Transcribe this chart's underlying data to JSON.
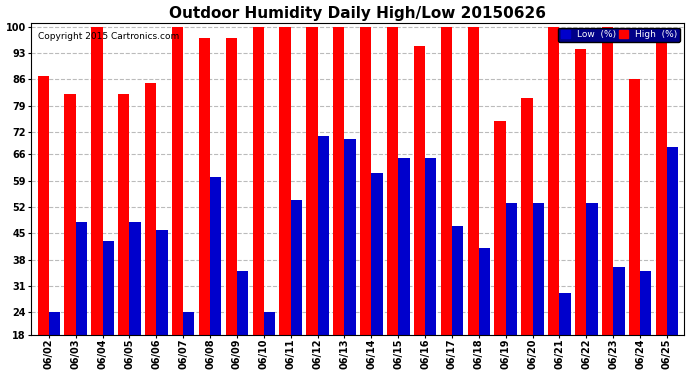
{
  "title": "Outdoor Humidity Daily High/Low 20150626",
  "copyright": "Copyright 2015 Cartronics.com",
  "legend_low": "Low  (%)",
  "legend_high": "High  (%)",
  "dates": [
    "06/02",
    "06/03",
    "06/04",
    "06/05",
    "06/06",
    "06/07",
    "06/08",
    "06/09",
    "06/10",
    "06/11",
    "06/12",
    "06/13",
    "06/14",
    "06/15",
    "06/16",
    "06/17",
    "06/18",
    "06/19",
    "06/20",
    "06/21",
    "06/22",
    "06/23",
    "06/24",
    "06/25"
  ],
  "high": [
    87,
    82,
    100,
    82,
    85,
    100,
    97,
    97,
    100,
    100,
    100,
    100,
    100,
    100,
    95,
    100,
    100,
    75,
    81,
    100,
    94,
    100,
    86,
    99
  ],
  "low": [
    24,
    48,
    43,
    48,
    46,
    24,
    60,
    35,
    24,
    54,
    71,
    70,
    61,
    65,
    65,
    47,
    41,
    53,
    53,
    29,
    53,
    36,
    35,
    68
  ],
  "ylim_min": 18,
  "ylim_max": 101,
  "yticks": [
    18,
    24,
    31,
    38,
    45,
    52,
    59,
    66,
    72,
    79,
    86,
    93,
    100
  ],
  "bar_color_high": "#ff0000",
  "bar_color_low": "#0000cc",
  "bg_color": "#ffffff",
  "grid_color": "#bbbbbb",
  "title_fontsize": 11,
  "tick_fontsize": 7,
  "legend_low_bg": "#0000cc",
  "legend_high_bg": "#ff0000",
  "bar_width": 0.42,
  "figwidth": 6.9,
  "figheight": 3.75,
  "dpi": 100
}
